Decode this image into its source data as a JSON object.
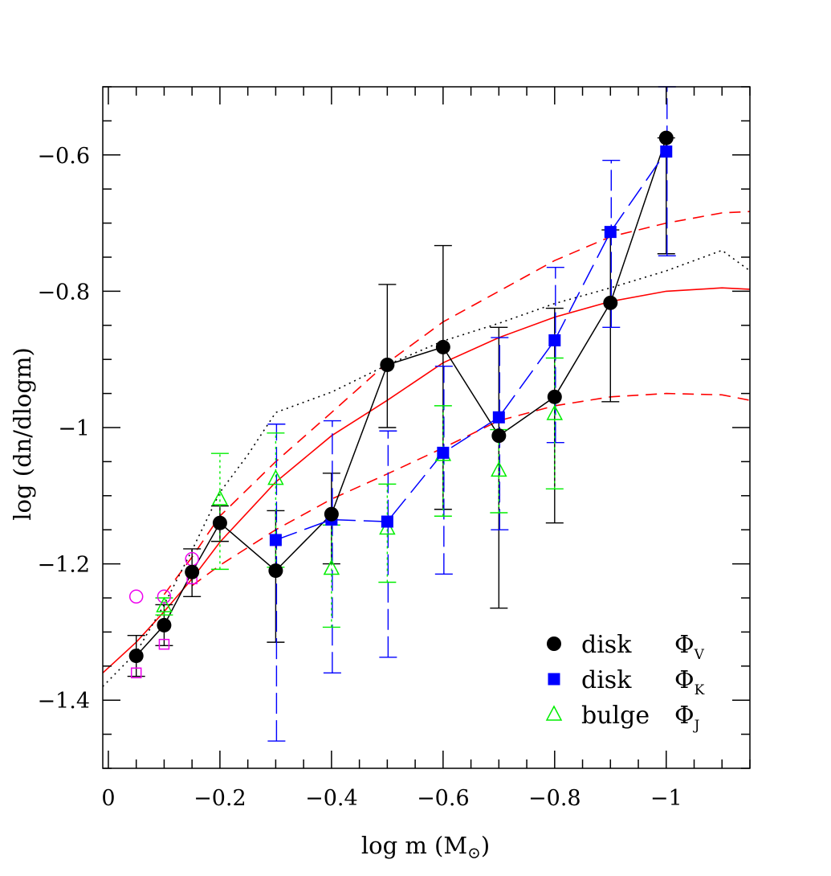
{
  "chart_data": {
    "type": "scatter",
    "xlabel": "log m (M",
    "xlabel_sun": "⊙",
    "xlabel_close": ")",
    "ylabel": "log (dn/dlogm)",
    "xlim": [
      0.01,
      -1.15
    ],
    "ylim": [
      -1.5,
      -0.5
    ],
    "x_ticks": [
      0,
      -0.2,
      -0.4,
      -0.6,
      -0.8,
      -1
    ],
    "x_tick_labels": [
      "0",
      "−0.2",
      "−0.4",
      "−0.6",
      "−0.8",
      "−1"
    ],
    "y_ticks": [
      -1.4,
      -1.2,
      -1,
      -0.8,
      -0.6
    ],
    "y_tick_labels": [
      "−1.4",
      "−1.2",
      "−1",
      "−0.8",
      "−0.6"
    ],
    "legend_position": "bottom-right",
    "series": [
      {
        "name": "disk ΦV",
        "legend_main": "disk",
        "legend_symbol": "Φ",
        "legend_sub": "V",
        "marker": "filled-circle",
        "color": "#000000",
        "line_style": "solid",
        "points": [
          {
            "x": -0.05,
            "y": -1.335,
            "lo": -1.365,
            "hi": -1.305
          },
          {
            "x": -0.1,
            "y": -1.29,
            "lo": -1.32,
            "hi": -1.26
          },
          {
            "x": -0.15,
            "y": -1.212,
            "lo": -1.248,
            "hi": -1.178
          },
          {
            "x": -0.2,
            "y": -1.14,
            "lo": -1.167,
            "hi": -1.115
          },
          {
            "x": -0.3,
            "y": -1.21,
            "lo": -1.315,
            "hi": -1.122
          },
          {
            "x": -0.4,
            "y": -1.127,
            "lo": -1.2,
            "hi": -1.067
          },
          {
            "x": -0.5,
            "y": -0.908,
            "lo": -1.0,
            "hi": -0.79
          },
          {
            "x": -0.6,
            "y": -0.882,
            "lo": -1.12,
            "hi": -0.733
          },
          {
            "x": -0.7,
            "y": -1.012,
            "lo": -1.265,
            "hi": -0.853
          },
          {
            "x": -0.8,
            "y": -0.955,
            "lo": -1.14,
            "hi": -0.825
          },
          {
            "x": -0.9,
            "y": -0.817,
            "lo": -0.962,
            "hi": -0.71
          },
          {
            "x": -1.0,
            "y": -0.575,
            "lo": -0.745,
            "hi": -0.575
          }
        ]
      },
      {
        "name": "disk ΦK",
        "legend_main": "disk",
        "legend_symbol": "Φ",
        "legend_sub": "K",
        "marker": "filled-square",
        "color": "#0000ff",
        "line_style": "long-dash",
        "points": [
          {
            "x": -0.3,
            "y": -1.165,
            "lo": -1.46,
            "hi": -0.995
          },
          {
            "x": -0.4,
            "y": -1.135,
            "lo": -1.36,
            "hi": -0.99
          },
          {
            "x": -0.5,
            "y": -1.138,
            "lo": -1.337,
            "hi": -1.005
          },
          {
            "x": -0.6,
            "y": -1.037,
            "lo": -1.215,
            "hi": -0.91
          },
          {
            "x": -0.7,
            "y": -0.985,
            "lo": -1.15,
            "hi": -0.868
          },
          {
            "x": -0.8,
            "y": -0.872,
            "lo": -1.022,
            "hi": -0.765
          },
          {
            "x": -0.9,
            "y": -0.713,
            "lo": -0.853,
            "hi": -0.608
          },
          {
            "x": -1.0,
            "y": -0.595,
            "lo": -0.748,
            "hi": -0.5
          }
        ]
      },
      {
        "name": "bulge ΦJ",
        "legend_main": "bulge",
        "legend_symbol": "Φ",
        "legend_sub": "J",
        "marker": "open-triangle",
        "color": "#00ee00",
        "line_style": "none",
        "points": [
          {
            "x": -0.1,
            "y": -1.262,
            "lo": -1.275,
            "hi": -1.25
          },
          {
            "x": -0.2,
            "y": -1.105,
            "lo": -1.208,
            "hi": -1.038
          },
          {
            "x": -0.3,
            "y": -1.075,
            "lo": -1.205,
            "hi": -1.008
          },
          {
            "x": -0.4,
            "y": -1.207,
            "lo": -1.293,
            "hi": -1.143
          },
          {
            "x": -0.5,
            "y": -1.148,
            "lo": -1.227,
            "hi": -1.083
          },
          {
            "x": -0.6,
            "y": -1.04,
            "lo": -1.13,
            "hi": -0.968
          },
          {
            "x": -0.7,
            "y": -1.063,
            "lo": -1.125,
            "hi": -1.003
          },
          {
            "x": -0.8,
            "y": -0.98,
            "lo": -1.09,
            "hi": -0.898
          }
        ]
      },
      {
        "marker": "open-circle",
        "color": "#ee00ee",
        "points": [
          {
            "x": -0.05,
            "y": -1.248
          },
          {
            "x": -0.1,
            "y": -1.248
          },
          {
            "x": -0.15,
            "y": -1.193
          }
        ]
      },
      {
        "marker": "open-square",
        "color": "#ee00ee",
        "points": [
          {
            "x": -0.05,
            "y": -1.36
          },
          {
            "x": -0.1,
            "y": -1.318
          },
          {
            "x": -0.15,
            "y": -1.222
          }
        ]
      }
    ],
    "curves": [
      {
        "style": "solid",
        "color": "#ff0000",
        "points": [
          [
            0.01,
            -1.36
          ],
          [
            -0.05,
            -1.315
          ],
          [
            -0.1,
            -1.27
          ],
          [
            -0.15,
            -1.222
          ],
          [
            -0.2,
            -1.168
          ],
          [
            -0.3,
            -1.08
          ],
          [
            -0.4,
            -1.012
          ],
          [
            -0.5,
            -0.96
          ],
          [
            -0.6,
            -0.905
          ],
          [
            -0.7,
            -0.868
          ],
          [
            -0.8,
            -0.838
          ],
          [
            -0.9,
            -0.815
          ],
          [
            -1.0,
            -0.8
          ],
          [
            -1.1,
            -0.795
          ],
          [
            -1.15,
            -0.797
          ]
        ]
      },
      {
        "style": "dashed",
        "color": "#ff0000",
        "points": [
          [
            -0.1,
            -1.245
          ],
          [
            -0.15,
            -1.19
          ],
          [
            -0.2,
            -1.13
          ],
          [
            -0.3,
            -1.05
          ],
          [
            -0.4,
            -0.978
          ],
          [
            -0.5,
            -0.905
          ],
          [
            -0.6,
            -0.845
          ],
          [
            -0.7,
            -0.8
          ],
          [
            -0.8,
            -0.755
          ],
          [
            -0.9,
            -0.72
          ],
          [
            -1.0,
            -0.7
          ],
          [
            -1.1,
            -0.685
          ],
          [
            -1.15,
            -0.683
          ]
        ]
      },
      {
        "style": "dashed",
        "color": "#ff0000",
        "points": [
          [
            -0.15,
            -1.232
          ],
          [
            -0.2,
            -1.202
          ],
          [
            -0.3,
            -1.15
          ],
          [
            -0.4,
            -1.105
          ],
          [
            -0.5,
            -1.068
          ],
          [
            -0.6,
            -1.03
          ],
          [
            -0.7,
            -0.99
          ],
          [
            -0.8,
            -0.968
          ],
          [
            -0.9,
            -0.955
          ],
          [
            -1.0,
            -0.95
          ],
          [
            -1.1,
            -0.952
          ],
          [
            -1.15,
            -0.96
          ]
        ]
      },
      {
        "style": "dotted",
        "color": "#000000",
        "points": [
          [
            0.01,
            -1.38
          ],
          [
            -0.05,
            -1.33
          ],
          [
            -0.1,
            -1.26
          ],
          [
            -0.15,
            -1.18
          ],
          [
            -0.2,
            -1.095
          ],
          [
            -0.25,
            -1.04
          ],
          [
            -0.3,
            -0.978
          ],
          [
            -0.4,
            -0.948
          ],
          [
            -0.5,
            -0.908
          ],
          [
            -0.6,
            -0.873
          ],
          [
            -0.7,
            -0.847
          ],
          [
            -0.8,
            -0.818
          ],
          [
            -0.9,
            -0.795
          ],
          [
            -1.0,
            -0.77
          ],
          [
            -1.1,
            -0.74
          ],
          [
            -1.15,
            -0.77
          ]
        ]
      }
    ]
  }
}
